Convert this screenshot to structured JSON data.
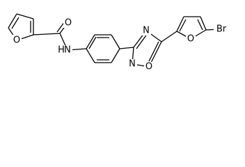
{
  "atoms": [
    {
      "label": "O"
    },
    {
      "label": "O"
    },
    {
      "label": "N"
    },
    {
      "label": "H"
    },
    {
      "label": "N"
    },
    {
      "label": "O"
    },
    {
      "label": "N"
    },
    {
      "label": "O"
    },
    {
      "label": "Br"
    }
  ]
}
